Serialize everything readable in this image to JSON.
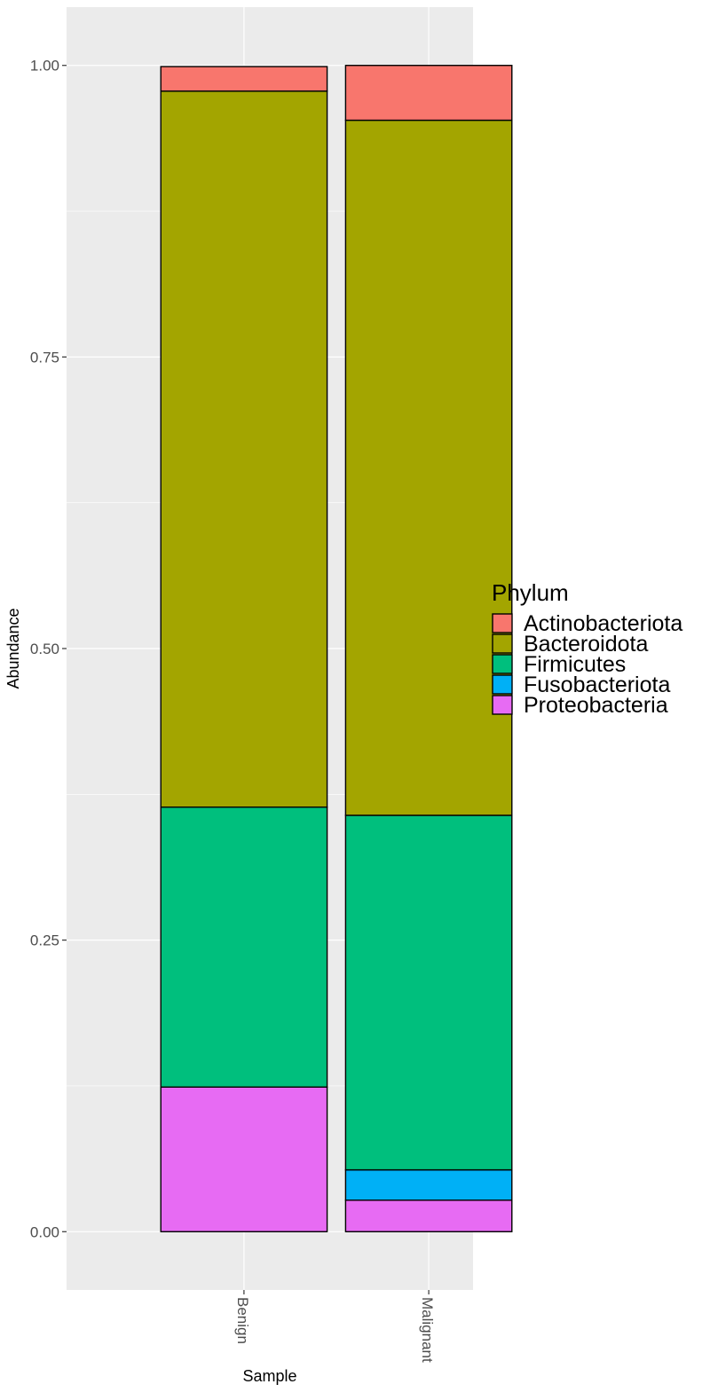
{
  "chart_data": {
    "type": "bar",
    "stacked": true,
    "categories": [
      "Benign",
      "Malignant"
    ],
    "xlabel": "Sample",
    "ylabel": "Abundance",
    "ylim": [
      -0.05,
      1.05
    ],
    "yticks": [
      0.0,
      0.25,
      0.5,
      0.75,
      1.0
    ],
    "ytick_labels": [
      "0.00",
      "0.25",
      "0.50",
      "0.75",
      "1.00"
    ],
    "grid": true,
    "x_tick_rotation": "vertical",
    "legend": {
      "title": "Phylum",
      "position": "right"
    },
    "series": [
      {
        "name": "Actinobacteriota",
        "color": "#F8766D",
        "values": [
          0.021,
          0.047
        ]
      },
      {
        "name": "Bacteroidota",
        "color": "#A3A500",
        "values": [
          0.614,
          0.596
        ]
      },
      {
        "name": "Firmicutes",
        "color": "#00BF7D",
        "values": [
          0.24,
          0.304
        ]
      },
      {
        "name": "Fusobacteriota",
        "color": "#00B0F6",
        "values": [
          0.0,
          0.026
        ]
      },
      {
        "name": "Proteobacteria",
        "color": "#E76BF3",
        "values": [
          0.124,
          0.027
        ]
      }
    ]
  }
}
